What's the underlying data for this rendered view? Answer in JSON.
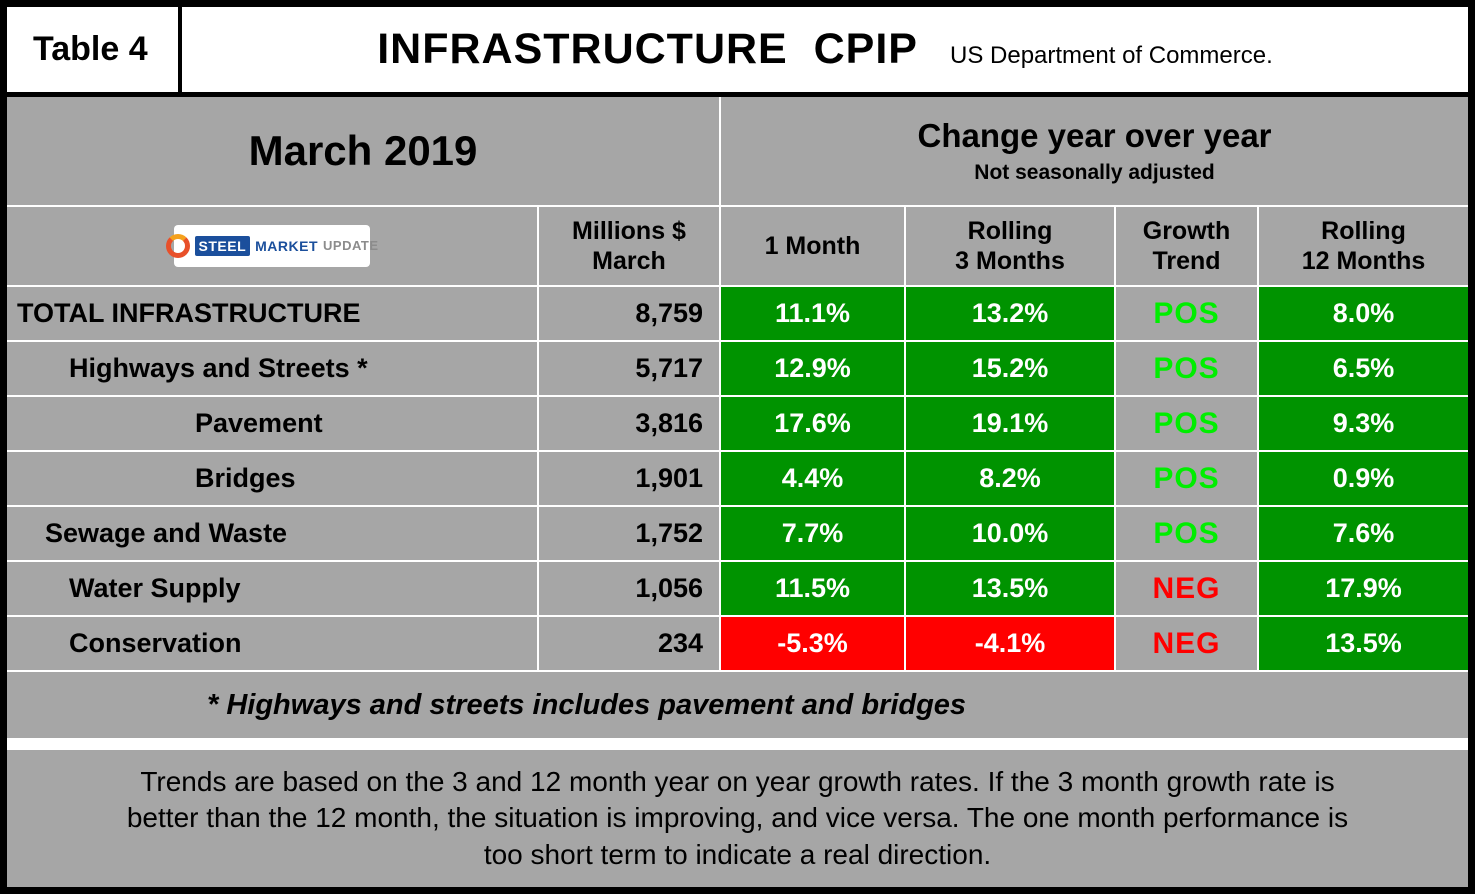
{
  "header": {
    "table_label": "Table 4",
    "title": "INFRASTRUCTURE  CPIP",
    "source": "US Department of Commerce."
  },
  "band": {
    "period": "March 2019",
    "change_title": "Change year over year",
    "change_subtitle": "Not seasonally adjusted"
  },
  "logo": {
    "word1": "STEEL",
    "word2": "MARKET",
    "word3": "UPDATE"
  },
  "column_labels": {
    "millions": "Millions $\nMarch",
    "one_month": "1 Month",
    "rolling_3": "Rolling\n3 Months",
    "trend": "Growth\nTrend",
    "rolling_12": "Rolling\n12 Months"
  },
  "chart_data": {
    "type": "table",
    "title": "INFRASTRUCTURE CPIP — March 2019, Change year over year (not seasonally adjusted)",
    "column_headers": [
      "",
      "Millions $ March",
      "1 Month",
      "Rolling 3 Months",
      "Growth Trend",
      "Rolling 12 Months"
    ],
    "rows": [
      {
        "label": "TOTAL INFRASTRUCTURE",
        "indent": 0,
        "millions": "8,759",
        "one_month": "11.1%",
        "rolling_3": "13.2%",
        "trend": "POS",
        "rolling_12": "8.0%"
      },
      {
        "label": "Highways and Streets *",
        "indent": 2,
        "millions": "5,717",
        "one_month": "12.9%",
        "rolling_3": "15.2%",
        "trend": "POS",
        "rolling_12": "6.5%"
      },
      {
        "label": "Pavement",
        "indent": 3,
        "millions": "3,816",
        "one_month": "17.6%",
        "rolling_3": "19.1%",
        "trend": "POS",
        "rolling_12": "9.3%"
      },
      {
        "label": "Bridges",
        "indent": 3,
        "millions": "1,901",
        "one_month": "4.4%",
        "rolling_3": "8.2%",
        "trend": "POS",
        "rolling_12": "0.9%"
      },
      {
        "label": "Sewage and Waste",
        "indent": 1,
        "millions": "1,752",
        "one_month": "7.7%",
        "rolling_3": "10.0%",
        "trend": "POS",
        "rolling_12": "7.6%"
      },
      {
        "label": "Water Supply",
        "indent": 2,
        "millions": "1,056",
        "one_month": "11.5%",
        "rolling_3": "13.5%",
        "trend": "NEG",
        "rolling_12": "17.9%"
      },
      {
        "label": "Conservation",
        "indent": 2,
        "millions": "234",
        "one_month": "-5.3%",
        "rolling_3": "-4.1%",
        "trend": "NEG",
        "rolling_12": "13.5%"
      }
    ]
  },
  "footnote": "* Highways and streets includes pavement and bridges",
  "note": "Trends are based on the 3 and 12 month year on year growth rates. If the 3 month growth rate is\nbetter than the 12 month, the situation is improving, and vice versa. The one month performance is\ntoo short term to indicate a real direction.",
  "colors": {
    "background_gray": "#a6a6a6",
    "positive_cell": "#009300",
    "negative_cell": "#ff0000",
    "pos_text": "#00ee00",
    "neg_text": "#ff0000",
    "cell_text": "#ffffff"
  }
}
